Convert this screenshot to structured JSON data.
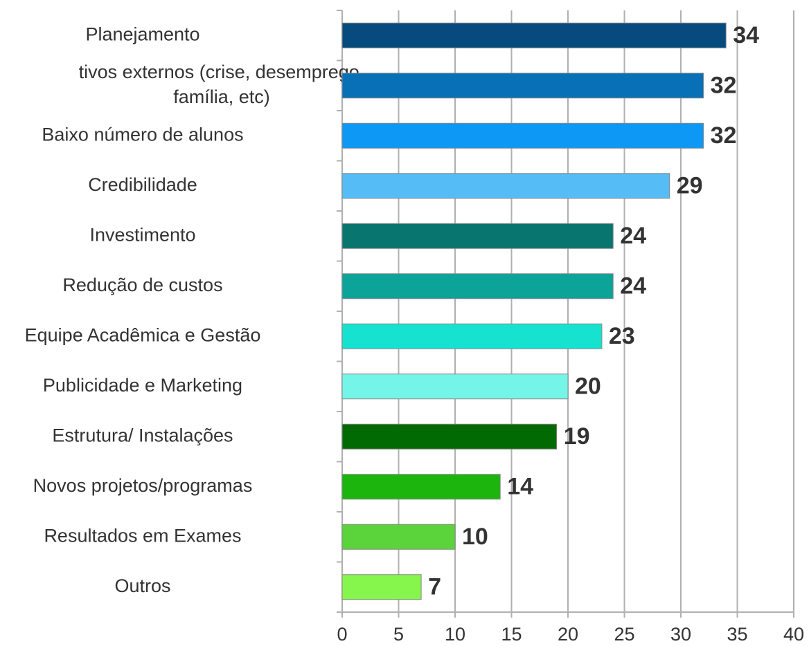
{
  "chart_data": {
    "type": "bar",
    "orientation": "horizontal",
    "categories": [
      "Planejamento",
      [
        "tivos externos (crise, desemprego,",
        "família, etc)"
      ],
      "Baixo número de alunos",
      "Credibilidade",
      "Investimento",
      "Redução de custos",
      "Equipe Acadêmica e Gestão",
      "Publicidade e Marketing",
      "Estrutura/ Instalações",
      "Novos projetos/programas",
      "Resultados em Exames",
      "Outros"
    ],
    "values": [
      34,
      32,
      32,
      29,
      24,
      24,
      23,
      20,
      19,
      14,
      10,
      7
    ],
    "colors": [
      "#064a7e",
      "#0770b6",
      "#0d98f5",
      "#55bcf5",
      "#08756f",
      "#0ca398",
      "#16e3cf",
      "#74f5e8",
      "#026a02",
      "#1bb50e",
      "#5bd33a",
      "#86f54c"
    ],
    "xlim": [
      0,
      40
    ],
    "xticks": [
      0,
      5,
      10,
      15,
      20,
      25,
      30,
      35,
      40
    ],
    "grid": true
  }
}
